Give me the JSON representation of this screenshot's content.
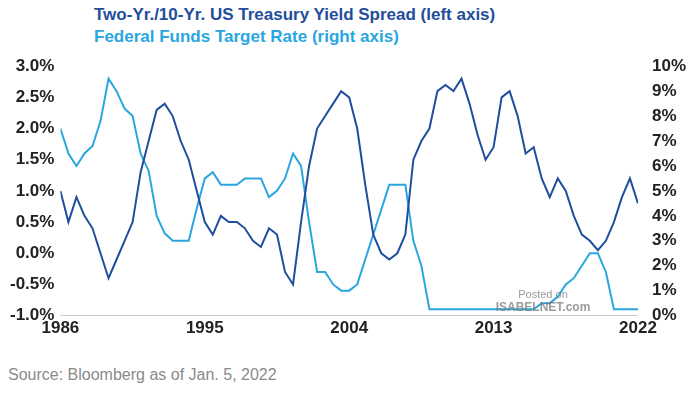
{
  "chart_data": {
    "type": "line",
    "legend": "top-left",
    "grid": false,
    "source": "Source: Bloomberg as of Jan. 5, 2022",
    "annotations": [
      "Posted on",
      "ISABELNET.com"
    ],
    "x": [
      1986,
      1986.5,
      1987,
      1987.5,
      1988,
      1988.5,
      1989,
      1989.5,
      1990,
      1990.5,
      1991,
      1991.5,
      1992,
      1992.5,
      1993,
      1993.5,
      1994,
      1994.5,
      1995,
      1995.5,
      1996,
      1996.5,
      1997,
      1997.5,
      1998,
      1998.5,
      1999,
      1999.5,
      2000,
      2000.5,
      2001,
      2001.5,
      2002,
      2002.5,
      2003,
      2003.5,
      2004,
      2004.5,
      2005,
      2005.5,
      2006,
      2006.5,
      2007,
      2007.5,
      2008,
      2008.5,
      2009,
      2009.5,
      2010,
      2010.5,
      2011,
      2011.5,
      2012,
      2012.5,
      2013,
      2013.5,
      2014,
      2014.5,
      2015,
      2015.5,
      2016,
      2016.5,
      2017,
      2017.5,
      2018,
      2018.5,
      2019,
      2019.5,
      2020,
      2020.5,
      2021,
      2021.5,
      2022
    ],
    "xlim": [
      1986,
      2022
    ],
    "xticks": [
      1986,
      1995,
      2004,
      2013,
      2022
    ],
    "ylim": [
      -1,
      3
    ],
    "yticks": [
      {
        "value": -1,
        "label": "-1.0%"
      },
      {
        "value": -0.5,
        "label": "-0.5%"
      },
      {
        "value": 0,
        "label": "0.0%"
      },
      {
        "value": 0.5,
        "label": "0.5%"
      },
      {
        "value": 1,
        "label": "1.0%"
      },
      {
        "value": 1.5,
        "label": "1.5%"
      },
      {
        "value": 2,
        "label": "2.0%"
      },
      {
        "value": 2.5,
        "label": "2.5%"
      },
      {
        "value": 3,
        "label": "3.0%"
      }
    ],
    "y2lim": [
      0,
      10
    ],
    "y2ticks": [
      {
        "value": 0,
        "label": "0%"
      },
      {
        "value": 1,
        "label": "1%"
      },
      {
        "value": 2,
        "label": "2%"
      },
      {
        "value": 3,
        "label": "3%"
      },
      {
        "value": 4,
        "label": "4%"
      },
      {
        "value": 5,
        "label": "5%"
      },
      {
        "value": 6,
        "label": "6%"
      },
      {
        "value": 7,
        "label": "7%"
      },
      {
        "value": 8,
        "label": "8%"
      },
      {
        "value": 9,
        "label": "9%"
      },
      {
        "value": 10,
        "label": "10%"
      }
    ],
    "series": [
      {
        "name": "Two-Yr./10-Yr. US Treasury Yield Spread (left axis)",
        "color": "#1f4e9c",
        "values": [
          1.0,
          0.5,
          0.9,
          0.6,
          0.4,
          0.0,
          -0.4,
          -0.1,
          0.2,
          0.5,
          1.3,
          1.8,
          2.3,
          2.4,
          2.2,
          1.8,
          1.5,
          1.0,
          0.5,
          0.3,
          0.6,
          0.5,
          0.5,
          0.4,
          0.2,
          0.1,
          0.4,
          0.3,
          -0.3,
          -0.5,
          0.5,
          1.4,
          2.0,
          2.2,
          2.4,
          2.6,
          2.5,
          2.0,
          1.1,
          0.3,
          0.0,
          -0.1,
          0.0,
          0.3,
          1.5,
          1.8,
          2.0,
          2.6,
          2.7,
          2.6,
          2.8,
          2.4,
          1.9,
          1.5,
          1.7,
          2.5,
          2.6,
          2.2,
          1.6,
          1.7,
          1.2,
          0.9,
          1.2,
          1.0,
          0.6,
          0.3,
          0.2,
          0.05,
          0.2,
          0.5,
          0.9,
          1.2,
          0.8
        ]
      },
      {
        "name": "Federal Funds Target Rate (right axis)",
        "color": "#2aa6df",
        "axis": "y2",
        "values": [
          7.5,
          6.5,
          6.0,
          6.5,
          6.8,
          7.8,
          9.5,
          9.0,
          8.3,
          8.0,
          6.5,
          5.8,
          4.0,
          3.3,
          3.0,
          3.0,
          3.0,
          4.3,
          5.5,
          5.75,
          5.25,
          5.25,
          5.25,
          5.5,
          5.5,
          5.5,
          4.75,
          5.0,
          5.5,
          6.5,
          6.0,
          3.75,
          1.75,
          1.75,
          1.25,
          1.0,
          1.0,
          1.25,
          2.25,
          3.25,
          4.25,
          5.25,
          5.25,
          5.25,
          3.0,
          2.0,
          0.25,
          0.25,
          0.25,
          0.25,
          0.25,
          0.25,
          0.25,
          0.25,
          0.25,
          0.25,
          0.25,
          0.25,
          0.25,
          0.25,
          0.5,
          0.5,
          0.75,
          1.25,
          1.5,
          2.0,
          2.5,
          2.5,
          1.75,
          0.25,
          0.25,
          0.25,
          0.25
        ]
      }
    ]
  }
}
